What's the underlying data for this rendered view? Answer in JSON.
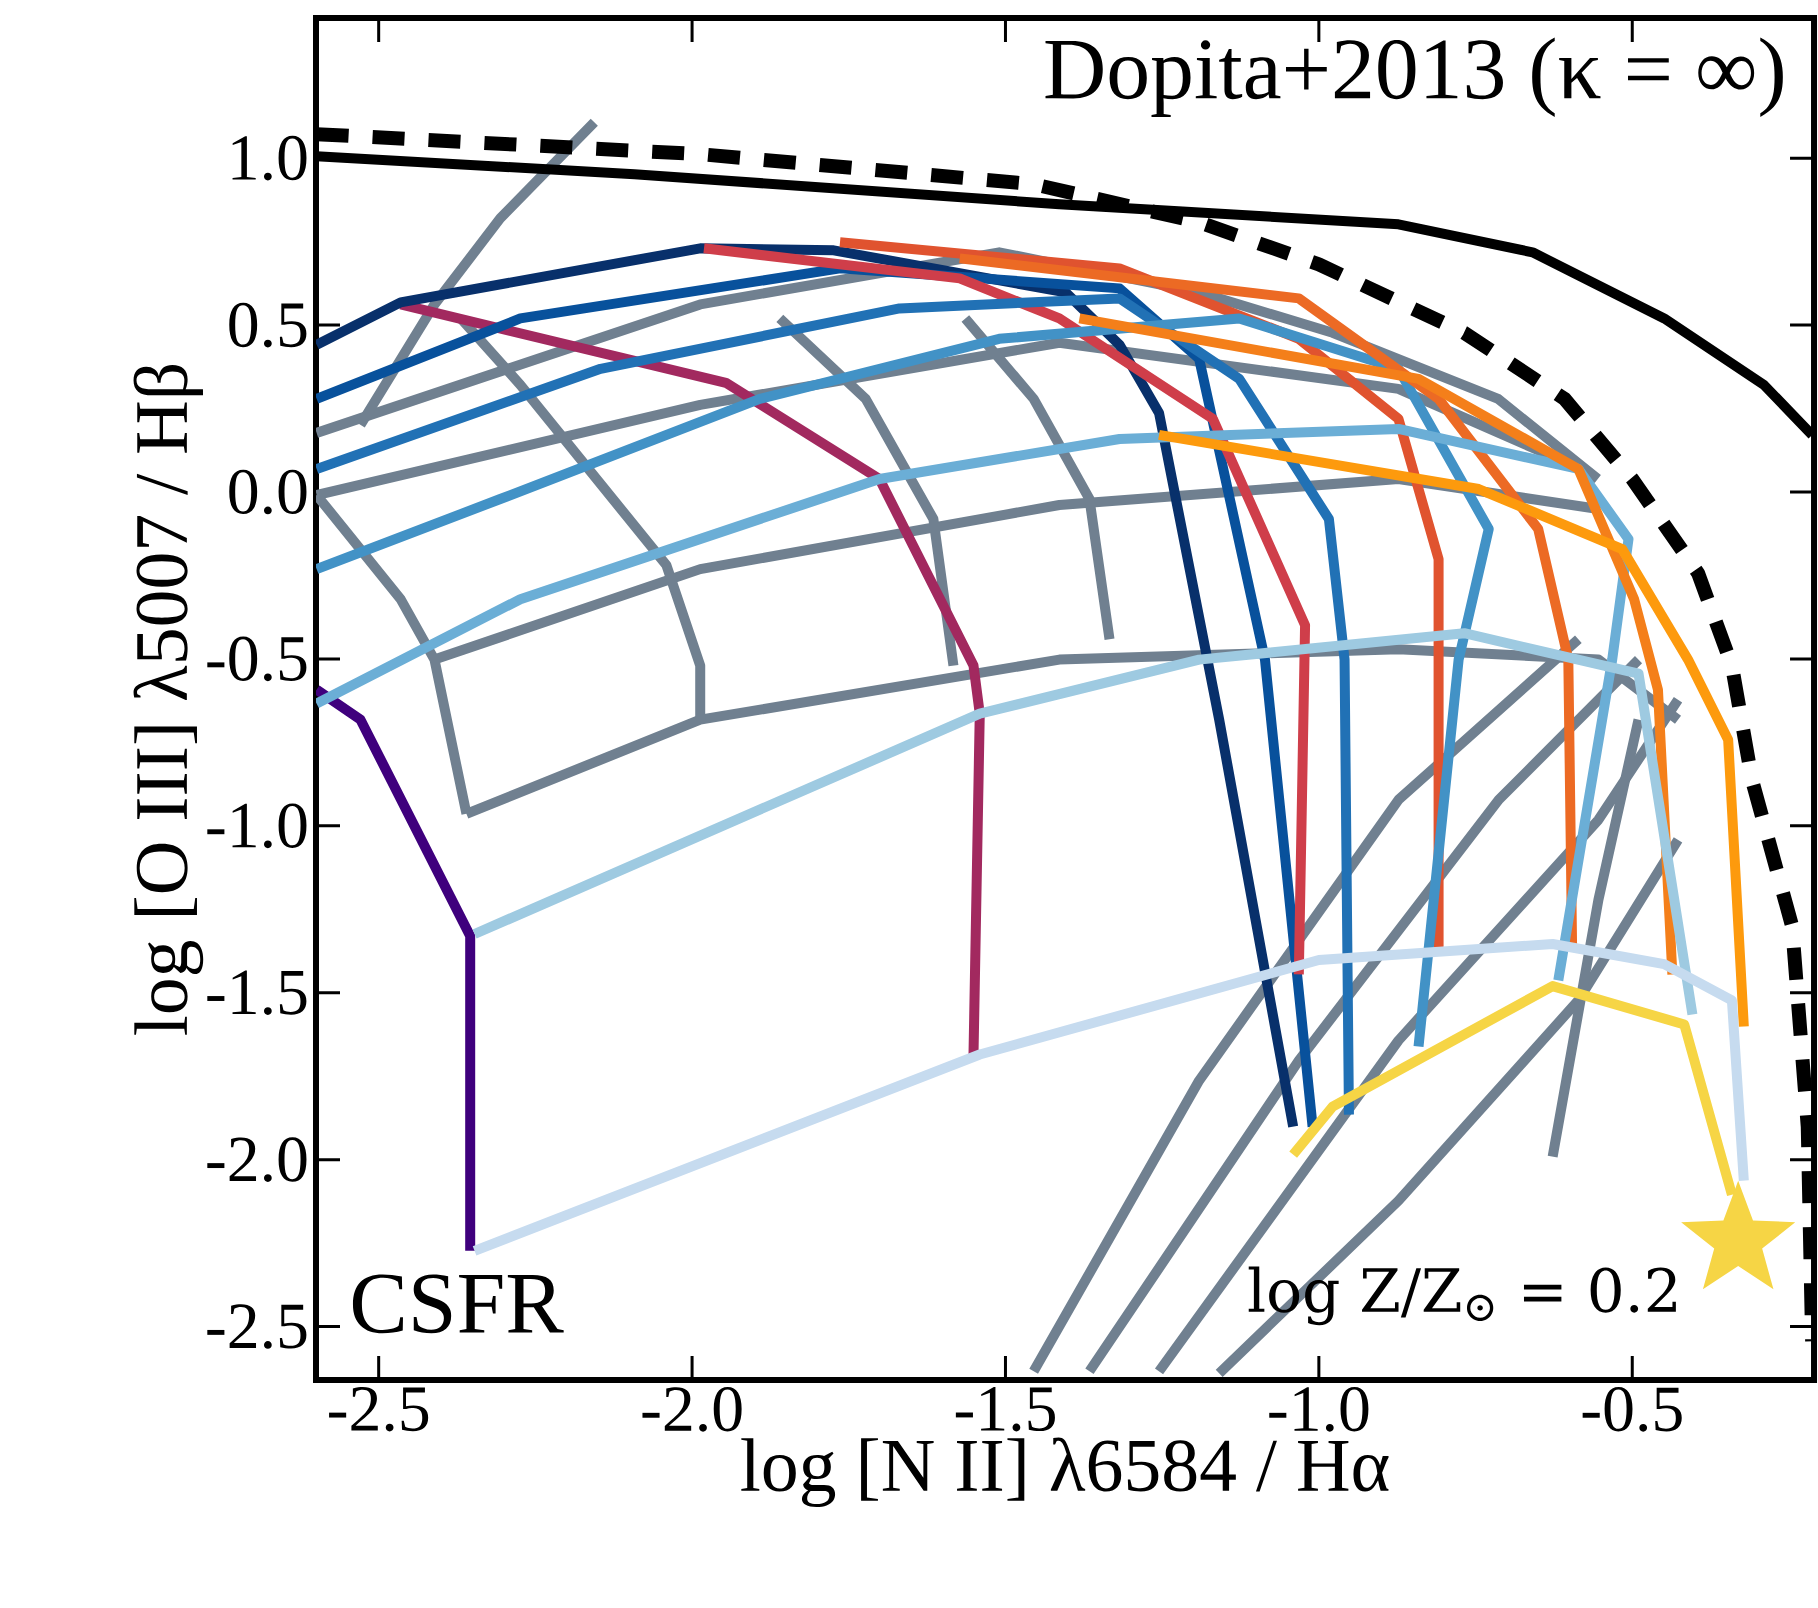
{
  "chart_data": {
    "type": "line",
    "xlabel": "log [N II] λ6584 / Hα",
    "ylabel": "log [O III] λ5007 / Hβ",
    "annotations": [
      "Dopita+2013 (κ = ∞)",
      "CSFR",
      "log Z/Z$_{⊙}$ = 0.2"
    ],
    "xlim": [
      -2.6,
      -0.21
    ],
    "ylim": [
      -2.66,
      1.42
    ],
    "xticks": [
      -2.5,
      {
        "value": -2.0,
        "label": "-2.0"
      },
      -1.5,
      {
        "value": -1.0,
        "label": "-1.0"
      },
      -0.5
    ],
    "yticks": [
      {
        "value": 1.0,
        "label": "1.0"
      },
      0.5,
      {
        "value": 0.0,
        "label": "0.0"
      },
      -0.5,
      {
        "value": -1.0,
        "label": "-1.0"
      },
      -1.5,
      {
        "value": -2.0,
        "label": "-2.0"
      },
      -2.5
    ],
    "series": [
      {
        "color": "#708090",
        "x": [
          -2.599,
          -1.987,
          -1.51,
          -1.191,
          -0.978,
          -0.714,
          -0.555
        ],
        "values": [
          0.177,
          0.562,
          0.718,
          0.598,
          0.477,
          0.279,
          0.039
        ]
      },
      {
        "color": "#708090",
        "x": [
          -2.599,
          -1.987,
          -1.414,
          -0.873,
          -0.618
        ],
        "values": [
          -0.009,
          0.261,
          0.447,
          0.309,
          0.099
        ]
      },
      {
        "color": "#708090",
        "x": [
          -2.411,
          -1.987,
          -1.414,
          -0.873,
          -0.554
        ],
        "values": [
          -0.502,
          -0.231,
          -0.039,
          0.039,
          -0.051
        ]
      },
      {
        "color": "#708090",
        "x": [
          -2.36,
          -1.987,
          -1.414,
          -0.873,
          -0.554,
          -0.427
        ],
        "values": [
          -0.964,
          -0.682,
          -0.502,
          -0.471,
          -0.502,
          -0.682
        ]
      },
      {
        "color": "#708090",
        "x": [
          -2.599,
          -2.465,
          -2.411,
          -2.36
        ],
        "values": [
          -0.009,
          -0.321,
          -0.502,
          -0.964
        ]
      },
      {
        "color": "#708090",
        "x": [
          -2.369,
          -2.274,
          -2.041,
          -1.987,
          -1.987
        ],
        "values": [
          0.52,
          0.321,
          -0.219,
          -0.52,
          -0.682
        ]
      },
      {
        "color": "#708090",
        "x": [
          -1.86,
          -1.723,
          -1.615,
          -1.583
        ],
        "values": [
          0.52,
          0.279,
          -0.081,
          -0.52
        ]
      },
      {
        "color": "#708090",
        "x": [
          -1.564,
          -1.455,
          -1.366,
          -1.334
        ],
        "values": [
          0.52,
          0.279,
          -0.021,
          -0.441
        ]
      },
      {
        "color": "#708090",
        "x": [
          -1.455,
          -1.191,
          -0.873,
          -0.586
        ],
        "values": [
          -2.634,
          -1.763,
          -0.922,
          -0.441
        ]
      },
      {
        "color": "#708090",
        "x": [
          -1.366,
          -1.032,
          -0.713,
          -0.49
        ],
        "values": [
          -2.634,
          -1.703,
          -0.922,
          -0.502
        ]
      },
      {
        "color": "#708090",
        "x": [
          -1.255,
          -0.873,
          -0.554,
          -0.427
        ],
        "values": [
          -2.634,
          -1.643,
          -0.982,
          -0.622
        ]
      },
      {
        "color": "#708090",
        "x": [
          -1.159,
          -0.873,
          -0.586,
          -0.427
        ],
        "values": [
          -2.64,
          -2.123,
          -1.523,
          -1.042
        ]
      },
      {
        "color": "#708090",
        "x": [
          -0.627,
          -0.554,
          -0.49
        ],
        "values": [
          -1.991,
          -1.222,
          -0.682
        ]
      },
      {
        "color": "#708090",
        "x": [
          -2.529,
          -2.411,
          -2.306,
          -2.156
        ],
        "values": [
          0.201,
          0.562,
          0.82,
          1.108
        ]
      },
      {
        "color": "#3f007d",
        "x": [
          -2.599,
          -2.529,
          -2.354,
          -2.354
        ],
        "values": [
          -0.592,
          -0.682,
          -1.33,
          -2.273
        ]
      },
      {
        "color": "#a2295f",
        "x": [
          -2.465,
          -1.946,
          -1.701,
          -1.551,
          -1.541,
          -1.551
        ],
        "values": [
          0.562,
          0.327,
          0.039,
          -0.52,
          -0.664,
          -1.685
        ]
      },
      {
        "color": "#08306b",
        "x": [
          -2.599,
          -2.465,
          -1.987,
          -1.774,
          -1.404,
          -1.318,
          -1.255,
          -1.159,
          -1.041
        ],
        "values": [
          0.441,
          0.568,
          0.73,
          0.724,
          0.598,
          0.441,
          0.237,
          -0.682,
          -1.901
        ]
      },
      {
        "color": "#08519c",
        "x": [
          -2.599,
          -2.274,
          -1.764,
          -1.318,
          -1.191,
          -1.086,
          -1.01
        ],
        "values": [
          0.279,
          0.52,
          0.67,
          0.61,
          0.399,
          -0.502,
          -1.901
        ]
      },
      {
        "color": "#cf3e4a",
        "x": [
          -1.981,
          -1.573,
          -1.414,
          -1.169,
          -1.022,
          -1.032
        ],
        "values": [
          0.73,
          0.64,
          0.52,
          0.219,
          -0.399,
          -1.445
        ]
      },
      {
        "color": "#2171b5",
        "x": [
          -2.599,
          -2.146,
          -1.669,
          -1.318,
          -1.127,
          -0.984,
          -0.959,
          -0.952
        ],
        "values": [
          0.069,
          0.369,
          0.55,
          0.58,
          0.339,
          -0.081,
          -0.502,
          -1.865
        ]
      },
      {
        "color": "#e0532f",
        "x": [
          -1.764,
          -1.318,
          -1.032,
          -0.873,
          -0.809,
          -0.809
        ],
        "values": [
          0.748,
          0.67,
          0.459,
          0.219,
          -0.201,
          -1.384
        ]
      },
      {
        "color": "#4292c6",
        "x": [
          -2.599,
          -2.306,
          -1.892,
          -1.51,
          -1.127,
          -0.873,
          -0.729,
          -0.777,
          -0.841
        ],
        "values": [
          -0.231,
          -0.021,
          0.279,
          0.459,
          0.52,
          0.369,
          -0.111,
          -0.502,
          -1.661
        ]
      },
      {
        "color": "#ec6a24",
        "x": [
          -1.573,
          -1.032,
          -0.809,
          -0.65,
          -0.602,
          -0.596
        ],
        "values": [
          0.7,
          0.58,
          0.279,
          -0.111,
          -0.502,
          -1.36
        ]
      },
      {
        "color": "#6baed6",
        "x": [
          -2.599,
          -2.274,
          -1.701,
          -1.318,
          -0.873,
          -0.586,
          -0.506,
          -0.532,
          -0.618
        ],
        "values": [
          -0.634,
          -0.321,
          0.039,
          0.159,
          0.189,
          0.069,
          -0.141,
          -0.502,
          -1.463
        ]
      },
      {
        "color": "#f47f1a",
        "x": [
          -1.382,
          -0.841,
          -0.586,
          -0.497,
          -0.459,
          -0.436
        ],
        "values": [
          0.52,
          0.339,
          0.069,
          -0.321,
          -0.592,
          -1.445
        ]
      },
      {
        "color": "#fd9a0d",
        "x": [
          -1.255,
          -0.745,
          -0.516,
          -0.411,
          -0.347,
          -0.322
        ],
        "values": [
          0.171,
          0.009,
          -0.171,
          -0.502,
          -0.742,
          -1.601
        ]
      },
      {
        "color": "#9ecae1",
        "x": [
          -2.347,
          -1.541,
          -1.191,
          -0.768,
          -0.49,
          -0.404
        ],
        "values": [
          -1.324,
          -0.664,
          -0.502,
          -0.423,
          -0.544,
          -1.565
        ]
      },
      {
        "color": "#c6dbef",
        "x": [
          -2.347,
          -1.541,
          -1.0,
          -0.627,
          -0.449,
          -0.341,
          -0.322
        ],
        "values": [
          -2.273,
          -1.685,
          -1.402,
          -1.354,
          -1.414,
          -1.523,
          -2.063
        ]
      },
      {
        "color": "#f6d545",
        "x": [
          -1.041,
          -0.978,
          -0.627,
          -0.417,
          -0.341
        ],
        "values": [
          -1.985,
          -1.841,
          -1.48,
          -1.595,
          -2.105
        ]
      },
      {
        "type": "scatter",
        "marker": "star",
        "color": "#f6d545",
        "x": [
          -0.331
        ],
        "values": [
          -2.243
        ]
      },
      {
        "color": "#000000",
        "x": [
          -2.599,
          -2.092,
          -1.414,
          -0.873,
          -0.659,
          -0.449,
          -0.29,
          -0.213
        ],
        "values": [
          1.006,
          0.952,
          0.862,
          0.802,
          0.718,
          0.52,
          0.321,
          0.171
        ]
      },
      {
        "color": "#000000",
        "line_style": "dashed",
        "x": [
          -2.599,
          -1.987,
          -1.455,
          -1.191,
          -1.0,
          -0.768,
          -0.608,
          -0.5,
          -0.395,
          -0.341,
          -0.309,
          -0.245,
          -0.22,
          -0.213
        ],
        "values": [
          1.072,
          1.012,
          0.922,
          0.808,
          0.682,
          0.477,
          0.279,
          0.039,
          -0.243,
          -0.52,
          -0.862,
          -1.3,
          -1.901,
          -2.544
        ]
      }
    ]
  }
}
